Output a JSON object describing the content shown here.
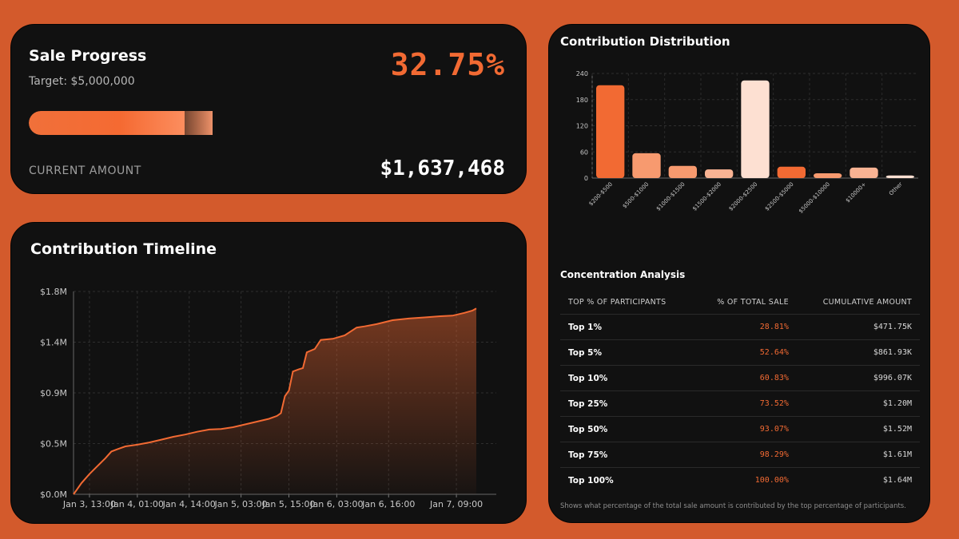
{
  "progress": {
    "title": "Sale Progress",
    "target": "Target: $5,000,000",
    "percent_label": "32.75%",
    "percent_value": 0.3275,
    "current_label": "CURRENT AMOUNT",
    "current_amount": "$1,637,468",
    "colors": {
      "accent": "#f26a33",
      "bar_start": "#f0703a",
      "bar_end": "#ff9d72"
    }
  },
  "timeline": {
    "title": "Contribution Timeline",
    "chart_ref": 0
  },
  "distribution": {
    "title": "Contribution Distribution",
    "chart_ref": 1
  },
  "concentration": {
    "title": "Concentration Analysis",
    "headers": [
      "TOP % OF PARTICIPANTS",
      "% OF TOTAL SALE",
      "CUMULATIVE AMOUNT"
    ],
    "rows": [
      {
        "label": "Top 1%",
        "pct": "28.81%",
        "amount": "$471.75K"
      },
      {
        "label": "Top 5%",
        "pct": "52.64%",
        "amount": "$861.93K"
      },
      {
        "label": "Top 10%",
        "pct": "60.83%",
        "amount": "$996.07K"
      },
      {
        "label": "Top 25%",
        "pct": "73.52%",
        "amount": "$1.20M"
      },
      {
        "label": "Top 50%",
        "pct": "93.07%",
        "amount": "$1.52M"
      },
      {
        "label": "Top 75%",
        "pct": "98.29%",
        "amount": "$1.61M"
      },
      {
        "label": "Top 100%",
        "pct": "100.00%",
        "amount": "$1.64M"
      }
    ],
    "footnote": "Shows what percentage of the total sale amount is contributed by the top percentage of participants."
  },
  "chart_data": [
    {
      "type": "area",
      "title": "Contribution Timeline",
      "x_unit": "hours since start",
      "y_ticks": [
        {
          "value": 0,
          "label": "$0.0M"
        },
        {
          "value": 450000,
          "label": "$0.5M"
        },
        {
          "value": 900000,
          "label": "$0.9M"
        },
        {
          "value": 1350000,
          "label": "$1.4M"
        },
        {
          "value": 1800000,
          "label": "$1.8M"
        }
      ],
      "ylim": [
        0,
        1800000
      ],
      "xlim": [
        0,
        106
      ],
      "x_ticks": [
        {
          "value": 4,
          "label": "Jan 3, 13:00"
        },
        {
          "value": 16,
          "label": "Jan 4, 01:00"
        },
        {
          "value": 29,
          "label": "Jan 4, 14:00"
        },
        {
          "value": 42,
          "label": "Jan 5, 03:00"
        },
        {
          "value": 54,
          "label": "Jan 5, 15:00"
        },
        {
          "value": 66,
          "label": "Jan 6, 03:00"
        },
        {
          "value": 79,
          "label": "Jan 6, 16:00"
        },
        {
          "value": 96,
          "label": "Jan 7, 09:00"
        }
      ],
      "grid": true,
      "series": [
        {
          "color": "#f26a33",
          "points": [
            [
              0,
              0
            ],
            [
              0.8,
              40000
            ],
            [
              2,
              100000
            ],
            [
              4,
              180000
            ],
            [
              6,
              250000
            ],
            [
              8,
              320000
            ],
            [
              9.5,
              380000
            ],
            [
              11,
              400000
            ],
            [
              13,
              425000
            ],
            [
              16,
              440000
            ],
            [
              19,
              460000
            ],
            [
              22,
              485000
            ],
            [
              25,
              510000
            ],
            [
              28,
              530000
            ],
            [
              31,
              555000
            ],
            [
              34,
              575000
            ],
            [
              37,
              580000
            ],
            [
              40,
              595000
            ],
            [
              43,
              620000
            ],
            [
              46,
              645000
            ],
            [
              49,
              670000
            ],
            [
              51,
              695000
            ],
            [
              52,
              720000
            ],
            [
              53,
              870000
            ],
            [
              54,
              920000
            ],
            [
              55,
              1090000
            ],
            [
              56.5,
              1110000
            ],
            [
              57.5,
              1120000
            ],
            [
              58.5,
              1260000
            ],
            [
              60.5,
              1290000
            ],
            [
              62,
              1370000
            ],
            [
              65,
              1380000
            ],
            [
              68,
              1410000
            ],
            [
              71,
              1480000
            ],
            [
              73,
              1490000
            ],
            [
              76,
              1510000
            ],
            [
              80,
              1545000
            ],
            [
              84,
              1560000
            ],
            [
              88,
              1570000
            ],
            [
              92,
              1580000
            ],
            [
              95,
              1585000
            ],
            [
              98,
              1610000
            ],
            [
              100,
              1630000
            ],
            [
              101,
              1650000
            ]
          ]
        }
      ]
    },
    {
      "type": "bar",
      "title": "Contribution Distribution",
      "categories": [
        "$200-$500",
        "$500-$1000",
        "$1000-$1500",
        "$1500-$2000",
        "$2000-$2500",
        "$2500-$5000",
        "$5000-$10000",
        "$10000+",
        "Other"
      ],
      "values": [
        213,
        57,
        28,
        20,
        224,
        26,
        11,
        24,
        6
      ],
      "colors": [
        "#f26a33",
        "#f79a6f",
        "#f79a6f",
        "#f9b393",
        "#fde0d2",
        "#f26a33",
        "#f79a6f",
        "#f9b393",
        "#fde0d2"
      ],
      "ylim": [
        0,
        240
      ],
      "y_ticks": [
        0,
        60,
        120,
        180,
        240
      ],
      "grid": true
    }
  ]
}
